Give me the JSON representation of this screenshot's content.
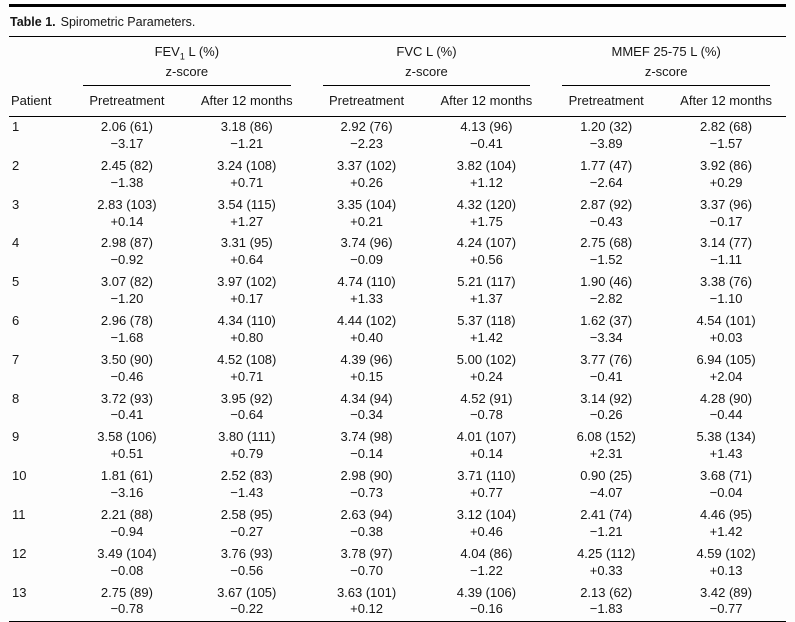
{
  "caption": {
    "label": "Table 1.",
    "text": "Spirometric Parameters."
  },
  "table": {
    "patient_header": "Patient",
    "groups": [
      {
        "base": "FEV",
        "sub": "1",
        "rest": " L (%)",
        "line2": "z-score"
      },
      {
        "base": "FVC",
        "sub": "",
        "rest": " L (%)",
        "line2": "z-score"
      },
      {
        "base": "MMEF 25-75",
        "sub": "",
        "rest": " L (%)",
        "line2": "z-score"
      }
    ],
    "sub_headers": [
      "Pretreatment",
      "After 12 months"
    ],
    "rows": [
      {
        "patient": "1",
        "cells": [
          [
            "2.06 (61)",
            "−3.17"
          ],
          [
            "3.18 (86)",
            "−1.21"
          ],
          [
            "2.92 (76)",
            "−2.23"
          ],
          [
            "4.13 (96)",
            "−0.41"
          ],
          [
            "1.20 (32)",
            "−3.89"
          ],
          [
            "2.82 (68)",
            "−1.57"
          ]
        ]
      },
      {
        "patient": "2",
        "cells": [
          [
            "2.45 (82)",
            "−1.38"
          ],
          [
            "3.24 (108)",
            "+0.71"
          ],
          [
            "3.37 (102)",
            "+0.26"
          ],
          [
            "3.82 (104)",
            "+1.12"
          ],
          [
            "1.77 (47)",
            "−2.64"
          ],
          [
            "3.92 (86)",
            "+0.29"
          ]
        ]
      },
      {
        "patient": "3",
        "cells": [
          [
            "2.83 (103)",
            "+0.14"
          ],
          [
            "3.54 (115)",
            "+1.27"
          ],
          [
            "3.35 (104)",
            "+0.21"
          ],
          [
            "4.32 (120)",
            "+1.75"
          ],
          [
            "2.87 (92)",
            "−0.43"
          ],
          [
            "3.37 (96)",
            "−0.17"
          ]
        ]
      },
      {
        "patient": "4",
        "cells": [
          [
            "2.98 (87)",
            "−0.92"
          ],
          [
            "3.31 (95)",
            "+0.64"
          ],
          [
            "3.74 (96)",
            "−0.09"
          ],
          [
            "4.24 (107)",
            "+0.56"
          ],
          [
            "2.75 (68)",
            "−1.52"
          ],
          [
            "3.14 (77)",
            "−1.11"
          ]
        ]
      },
      {
        "patient": "5",
        "cells": [
          [
            "3.07 (82)",
            "−1.20"
          ],
          [
            "3.97 (102)",
            "+0.17"
          ],
          [
            "4.74 (110)",
            "+1.33"
          ],
          [
            "5.21 (117)",
            "+1.37"
          ],
          [
            "1.90 (46)",
            "−2.82"
          ],
          [
            "3.38 (76)",
            "−1.10"
          ]
        ]
      },
      {
        "patient": "6",
        "cells": [
          [
            "2.96 (78)",
            "−1.68"
          ],
          [
            "4.34 (110)",
            "+0.80"
          ],
          [
            "4.44 (102)",
            "+0.40"
          ],
          [
            "5.37 (118)",
            "+1.42"
          ],
          [
            "1.62 (37)",
            "−3.34"
          ],
          [
            "4.54 (101)",
            "+0.03"
          ]
        ]
      },
      {
        "patient": "7",
        "cells": [
          [
            "3.50 (90)",
            "−0.46"
          ],
          [
            "4.52 (108)",
            "+0.71"
          ],
          [
            "4.39 (96)",
            "+0.15"
          ],
          [
            "5.00 (102)",
            "+0.24"
          ],
          [
            "3.77 (76)",
            "−0.41"
          ],
          [
            "6.94 (105)",
            "+2.04"
          ]
        ]
      },
      {
        "patient": "8",
        "cells": [
          [
            "3.72 (93)",
            "−0.41"
          ],
          [
            "3.95 (92)",
            "−0.64"
          ],
          [
            "4.34 (94)",
            "−0.34"
          ],
          [
            "4.52 (91)",
            "−0.78"
          ],
          [
            "3.14 (92)",
            "−0.26"
          ],
          [
            "4.28 (90)",
            "−0.44"
          ]
        ]
      },
      {
        "patient": "9",
        "cells": [
          [
            "3.58 (106)",
            "+0.51"
          ],
          [
            "3.80 (111)",
            "+0.79"
          ],
          [
            "3.74 (98)",
            "−0.14"
          ],
          [
            "4.01 (107)",
            "+0.14"
          ],
          [
            "6.08 (152)",
            "+2.31"
          ],
          [
            "5.38 (134)",
            "+1.43"
          ]
        ]
      },
      {
        "patient": "10",
        "cells": [
          [
            "1.81 (61)",
            "−3.16"
          ],
          [
            "2.52 (83)",
            "−1.43"
          ],
          [
            "2.98 (90)",
            "−0.73"
          ],
          [
            "3.71 (110)",
            "+0.77"
          ],
          [
            "0.90 (25)",
            "−4.07"
          ],
          [
            "3.68 (71)",
            "−0.04"
          ]
        ]
      },
      {
        "patient": "11",
        "cells": [
          [
            "2.21 (88)",
            "−0.94"
          ],
          [
            "2.58 (95)",
            "−0.27"
          ],
          [
            "2.63 (94)",
            "−0.38"
          ],
          [
            "3.12 (104)",
            "+0.46"
          ],
          [
            "2.41 (74)",
            "−1.21"
          ],
          [
            "4.46 (95)",
            "+1.42"
          ]
        ]
      },
      {
        "patient": "12",
        "cells": [
          [
            "3.49 (104)",
            "−0.08"
          ],
          [
            "3.76 (93)",
            "−0.56"
          ],
          [
            "3.78 (97)",
            "−0.70"
          ],
          [
            "4.04 (86)",
            "−1.22"
          ],
          [
            "4.25 (112)",
            "+0.33"
          ],
          [
            "4.59 (102)",
            "+0.13"
          ]
        ]
      },
      {
        "patient": "13",
        "cells": [
          [
            "2.75 (89)",
            "−0.78"
          ],
          [
            "3.67 (105)",
            "−0.22"
          ],
          [
            "3.63 (101)",
            "+0.12"
          ],
          [
            "4.39 (106)",
            "−0.16"
          ],
          [
            "2.13 (62)",
            "−1.83"
          ],
          [
            "3.42 (89)",
            "−0.77"
          ]
        ]
      }
    ]
  }
}
